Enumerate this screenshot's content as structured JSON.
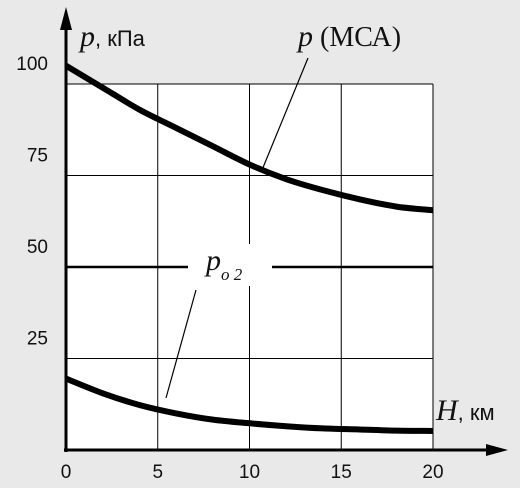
{
  "chart_data": {
    "type": "line",
    "title": "",
    "xlim": [
      0,
      20
    ],
    "ylim": [
      0,
      100
    ],
    "x_ticks": [
      0,
      5,
      10,
      15,
      20
    ],
    "y_ticks": [
      25,
      50,
      75,
      100
    ],
    "x_tick_labels": [
      "0",
      "5",
      "10",
      "15",
      "20"
    ],
    "y_tick_labels": [
      "25",
      "50",
      "75",
      "100"
    ],
    "xlabel": {
      "var": "H",
      "unit": ", км"
    },
    "ylabel": {
      "var": "p",
      "unit": ", кПа"
    },
    "grid": true,
    "series": [
      {
        "name": "p (МСА)",
        "label_main": "p",
        "label_suffix": " (МСА)",
        "x": [
          0,
          2,
          4,
          6,
          8,
          10,
          12,
          14,
          16,
          18,
          20
        ],
        "y": [
          105,
          99,
          93,
          88,
          83,
          78,
          74,
          71,
          68.5,
          66.5,
          65.5
        ]
      },
      {
        "name": "p о2",
        "label_main": "p",
        "label_sub": "о 2",
        "x": [
          0,
          5,
          10,
          15,
          20
        ],
        "y": [
          50,
          50,
          50,
          50,
          50
        ]
      },
      {
        "x": [
          0,
          2,
          4,
          6,
          8,
          10,
          12,
          14,
          16,
          18,
          20
        ],
        "y": [
          19.5,
          15.5,
          12.3,
          10,
          8.3,
          7.3,
          6.5,
          5.9,
          5.6,
          5.3,
          5.2
        ]
      }
    ]
  }
}
